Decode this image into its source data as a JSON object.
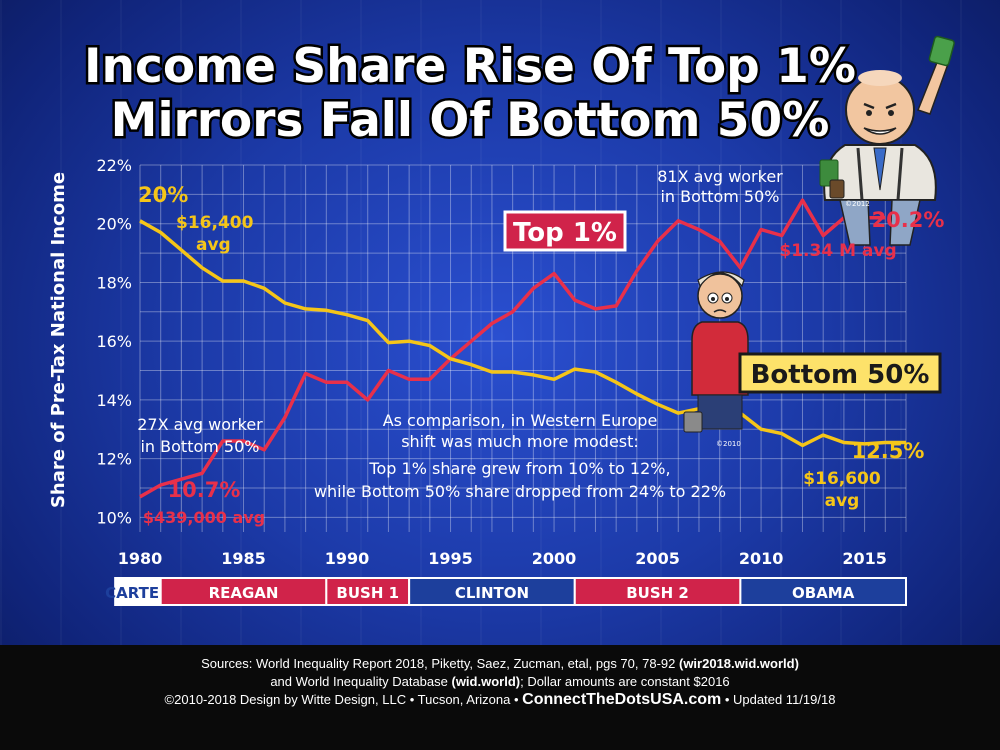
{
  "title": {
    "line1": "Income Share Rise Of Top 1%",
    "line2": "Mirrors Fall Of Bottom 50%"
  },
  "colors": {
    "top1": "#e8304a",
    "bottom50": "#f5c518",
    "background": "#1c3aa8",
    "grid": "#ffffff",
    "label_box_top": "#d0234a",
    "label_box_bottom": "#fde26a"
  },
  "chart_data": {
    "type": "line",
    "title": "Income Share Rise Of Top 1% Mirrors Fall Of Bottom 50%",
    "xlabel": "",
    "ylabel": "Share of Pre-Tax National Income",
    "xlim": [
      1980,
      2017
    ],
    "ylim": [
      9.5,
      22
    ],
    "y_ticks": [
      10,
      12,
      14,
      16,
      18,
      20,
      22
    ],
    "y_tick_labels": [
      "10%",
      "12%",
      "14%",
      "16%",
      "18%",
      "20%",
      "22%"
    ],
    "x_ticks": [
      1980,
      1985,
      1990,
      1995,
      2000,
      2005,
      2010,
      2015
    ],
    "x_tick_labels": [
      "1980",
      "1985",
      "1990",
      "1995",
      "2000",
      "2005",
      "2010",
      "2015"
    ],
    "grid": true,
    "series": [
      {
        "name": "Top 1%",
        "color": "#e8304a",
        "x": [
          1980,
          1981,
          1982,
          1983,
          1984,
          1985,
          1986,
          1987,
          1988,
          1989,
          1990,
          1991,
          1992,
          1993,
          1994,
          1995,
          1996,
          1997,
          1998,
          1999,
          2000,
          2001,
          2002,
          2003,
          2004,
          2005,
          2006,
          2007,
          2008,
          2009,
          2010,
          2011,
          2012,
          2013,
          2014,
          2015,
          2016
        ],
        "y": [
          10.7,
          11.1,
          11.3,
          11.5,
          12.6,
          12.6,
          12.3,
          13.4,
          14.9,
          14.6,
          14.6,
          14.0,
          15.0,
          14.7,
          14.7,
          15.4,
          16.0,
          16.6,
          17.0,
          17.8,
          18.3,
          17.4,
          17.1,
          17.2,
          18.4,
          19.4,
          20.1,
          19.8,
          19.4,
          18.5,
          19.8,
          19.6,
          20.8,
          19.6,
          20.2,
          20.2,
          20.2
        ]
      },
      {
        "name": "Bottom 50%",
        "color": "#f5c518",
        "x": [
          1980,
          1981,
          1982,
          1983,
          1984,
          1985,
          1986,
          1987,
          1988,
          1989,
          1990,
          1991,
          1992,
          1993,
          1994,
          1995,
          1996,
          1997,
          1998,
          1999,
          2000,
          2001,
          2002,
          2003,
          2004,
          2005,
          2006,
          2007,
          2008,
          2009,
          2010,
          2011,
          2012,
          2013,
          2014,
          2015,
          2016,
          2017
        ],
        "y": [
          20.1,
          19.7,
          19.1,
          18.5,
          18.05,
          18.05,
          17.8,
          17.3,
          17.1,
          17.05,
          16.9,
          16.7,
          15.95,
          16.0,
          15.85,
          15.4,
          15.2,
          14.95,
          14.95,
          14.85,
          14.7,
          15.05,
          14.95,
          14.6,
          14.2,
          13.85,
          13.55,
          13.7,
          13.7,
          13.55,
          13.0,
          12.85,
          12.45,
          12.8,
          12.55,
          12.5,
          12.55,
          12.55
        ]
      }
    ],
    "annotations": {
      "top_series_label": "Top 1%",
      "bottom_series_label": "Bottom 50%",
      "start_bottom_pct": "20%",
      "start_bottom_avg_1": "$16,400",
      "start_bottom_avg_2": "avg",
      "end_top_pct": "20.2%",
      "end_top_avg": "$1.34 M avg",
      "top_ratio_line1": "81X avg worker",
      "top_ratio_line2": "in Bottom 50%",
      "start_top_ratio_line1": "27X avg worker",
      "start_top_ratio_line2": "in Bottom 50%",
      "start_top_pct": "10.7%",
      "start_top_avg": "$439,000 avg",
      "end_bottom_pct": "12.5%",
      "end_bottom_avg_1": "$16,600",
      "end_bottom_avg_2": "avg",
      "comparison": [
        "As comparison, in Western Europe",
        "shift was much more modest:",
        "Top 1% share grew from 10% to 12%,",
        "while Bottom 50% share dropped from 24% to 22%"
      ],
      "copyright_fat_cat": "©2012",
      "copyright_worker": "©2010"
    }
  },
  "presidents": [
    {
      "name": "CARTER",
      "from": 1978.8,
      "to": 1981,
      "color": "#ffffff"
    },
    {
      "name": "REAGAN",
      "from": 1981,
      "to": 1989,
      "color": "#d0234a"
    },
    {
      "name": "BUSH 1",
      "from": 1989,
      "to": 1993,
      "color": "#d0234a"
    },
    {
      "name": "CLINTON",
      "from": 1993,
      "to": 2001,
      "color": "#1d3f9c"
    },
    {
      "name": "BUSH 2",
      "from": 2001,
      "to": 2009,
      "color": "#d0234a"
    },
    {
      "name": "OBAMA",
      "from": 2009,
      "to": 2017.1,
      "color": "#1d3f9c"
    }
  ],
  "footer": {
    "line1_text": "Sources: World Inequality Report 2018, Piketty, Saez, Zucman, etal, pgs 70, 78-92 ",
    "line1_bold": "(wir2018.wid.world)",
    "line2_text": "and World Inequality Database ",
    "line2_bold": "(wid.world)",
    "line2_rest": "; Dollar amounts are constant $2016",
    "line3_text": "©2010-2018 Design by Witte Design, LLC • Tucson, Arizona • ",
    "line3_site": "ConnectTheDotsUSA.com",
    "line3_rest": " • Updated 11/19/18"
  }
}
